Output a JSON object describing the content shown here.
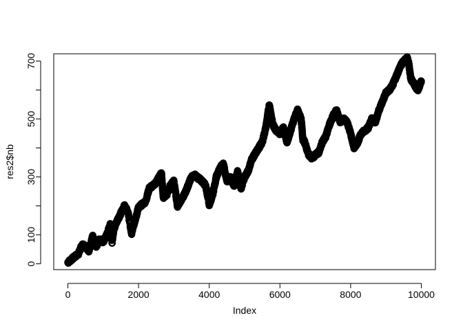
{
  "chart_data": {
    "type": "scatter",
    "title": "",
    "xlabel": "Index",
    "ylabel": "res2$nb",
    "xlim": [
      -400,
      10400
    ],
    "ylim": [
      -20,
      725
    ],
    "x_ticks": [
      0,
      2000,
      4000,
      6000,
      8000,
      10000
    ],
    "x_tick_labels": [
      "0",
      "2000",
      "4000",
      "6000",
      "8000",
      "10000"
    ],
    "y_ticks": [
      0,
      100,
      200,
      300,
      400,
      500,
      600,
      700
    ],
    "y_tick_labels": [
      "0",
      "100",
      "",
      "300",
      "",
      "500",
      "",
      "700"
    ],
    "grid": false,
    "point_color": "#000000",
    "series": [
      {
        "x": [
          0,
          150,
          300,
          400,
          500,
          600,
          700,
          800,
          900,
          1000,
          1100,
          1200,
          1250,
          1300,
          1400,
          1500,
          1600,
          1700,
          1800,
          1900,
          2000,
          2100,
          2200,
          2300,
          2400,
          2500,
          2600,
          2650,
          2700,
          2800,
          2900,
          3000,
          3100,
          3200,
          3300,
          3400,
          3500,
          3600,
          3700,
          3800,
          3900,
          4000,
          4100,
          4200,
          4300,
          4400,
          4500,
          4600,
          4700,
          4800,
          4900,
          5000,
          5100,
          5200,
          5300,
          5400,
          5500,
          5600,
          5700,
          5800,
          5900,
          6000,
          6100,
          6200,
          6300,
          6400,
          6500,
          6600,
          6650,
          6700,
          6800,
          6900,
          7000,
          7100,
          7200,
          7300,
          7400,
          7500,
          7600,
          7700,
          7800,
          7900,
          8000,
          8100,
          8200,
          8300,
          8400,
          8500,
          8600,
          8700,
          8800,
          8900,
          9000,
          9100,
          9200,
          9300,
          9400,
          9500,
          9600,
          9650,
          9700,
          9800,
          9900,
          10000
        ],
        "y": [
          5,
          20,
          35,
          65,
          60,
          45,
          95,
          60,
          85,
          75,
          100,
          135,
          75,
          120,
          150,
          175,
          200,
          180,
          105,
          150,
          195,
          205,
          215,
          260,
          270,
          280,
          305,
          310,
          230,
          240,
          270,
          285,
          200,
          220,
          240,
          270,
          300,
          305,
          295,
          285,
          270,
          205,
          240,
          300,
          330,
          345,
          285,
          300,
          270,
          320,
          260,
          300,
          320,
          360,
          380,
          400,
          420,
          470,
          550,
          480,
          460,
          450,
          470,
          420,
          460,
          500,
          530,
          500,
          430,
          420,
          380,
          365,
          375,
          385,
          420,
          440,
          480,
          510,
          530,
          490,
          500,
          490,
          450,
          400,
          420,
          450,
          460,
          470,
          500,
          490,
          530,
          560,
          590,
          600,
          620,
          650,
          680,
          700,
          710,
          690,
          640,
          620,
          600,
          630
        ]
      }
    ]
  }
}
